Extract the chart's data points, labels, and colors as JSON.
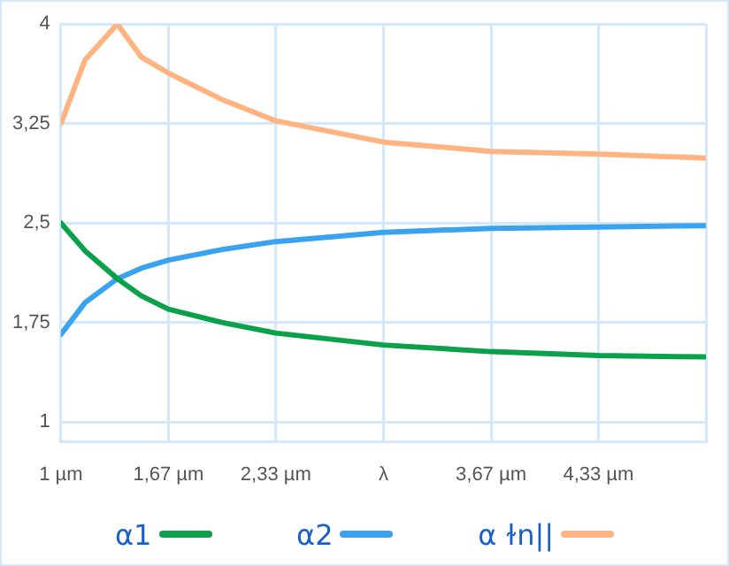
{
  "chart_data": {
    "type": "line",
    "x": [
      1,
      1.15,
      1.35,
      1.5,
      1.667,
      2,
      2.333,
      3,
      3.667,
      4.333,
      5
    ],
    "series": [
      {
        "name": "α1",
        "color": "#0aa14a",
        "values": [
          2.5,
          2.29,
          2.08,
          1.95,
          1.85,
          1.75,
          1.67,
          1.58,
          1.53,
          1.5,
          1.49
        ]
      },
      {
        "name": "α2",
        "color": "#3aa3f0",
        "values": [
          1.66,
          1.9,
          2.08,
          2.16,
          2.22,
          2.3,
          2.36,
          2.43,
          2.46,
          2.47,
          2.48
        ]
      },
      {
        "name": "α ɫn||",
        "color": "#ffb380",
        "values": [
          3.25,
          3.73,
          4.0,
          3.75,
          3.63,
          3.43,
          3.27,
          3.11,
          3.04,
          3.02,
          2.99
        ]
      }
    ],
    "xlim": [
      1,
      5
    ],
    "xticks": [
      {
        "value": 1,
        "label": "1 µm"
      },
      {
        "value": 1.667,
        "label": "1,67 µm"
      },
      {
        "value": 2.333,
        "label": "2,33 µm"
      },
      {
        "value": 3,
        "label": "λ"
      },
      {
        "value": 3.667,
        "label": "3,67 µm"
      },
      {
        "value": 4.333,
        "label": "4,33 µm"
      },
      {
        "value": 5,
        "label": null
      }
    ],
    "ylim": [
      0.85,
      4
    ],
    "yticks": [
      {
        "value": 1,
        "label": "1"
      },
      {
        "value": 1.75,
        "label": "1,75"
      },
      {
        "value": 2.5,
        "label": "2,5"
      },
      {
        "value": 3.25,
        "label": "3,25"
      },
      {
        "value": 4,
        "label": "4"
      }
    ],
    "grid": true,
    "legend": "bottom",
    "marker": "none",
    "line_style": "solid"
  }
}
